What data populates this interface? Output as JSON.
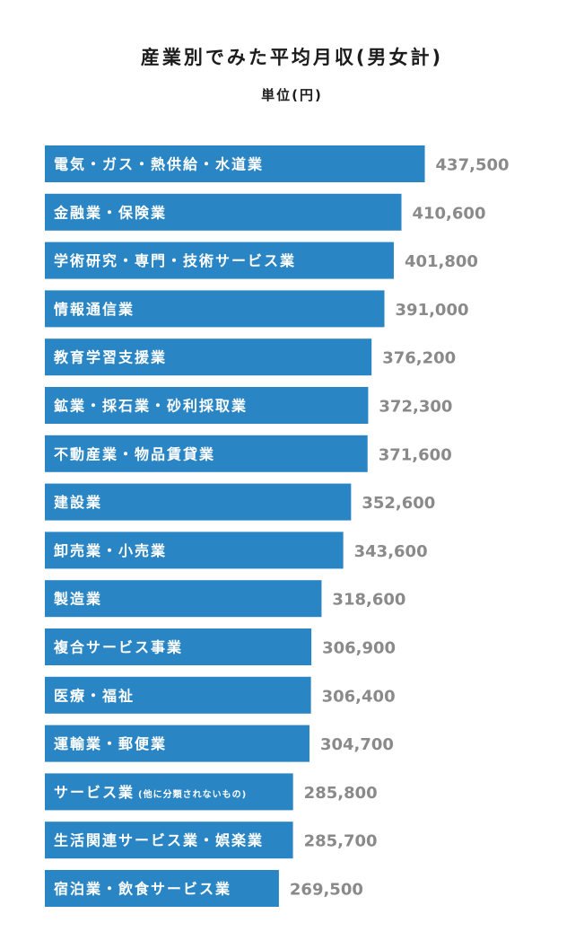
{
  "chart_data": {
    "type": "bar",
    "orientation": "horizontal",
    "title": "産業別でみた平均月収(男女計)",
    "subtitle": "単位(円)",
    "bar_color": "#2a85c4",
    "value_color": "#8a8a8a",
    "xlim": [
      0,
      470000
    ],
    "categories": [
      {
        "label": "電気・ガス・熱供給・水道業",
        "note": ""
      },
      {
        "label": "金融業・保険業",
        "note": ""
      },
      {
        "label": "学術研究・専門・技術サービス業",
        "note": ""
      },
      {
        "label": "情報通信業",
        "note": ""
      },
      {
        "label": "教育学習支援業",
        "note": ""
      },
      {
        "label": "鉱業・採石業・砂利採取業",
        "note": ""
      },
      {
        "label": "不動産業・物品賃貸業",
        "note": ""
      },
      {
        "label": "建設業",
        "note": ""
      },
      {
        "label": "卸売業・小売業",
        "note": ""
      },
      {
        "label": "製造業",
        "note": ""
      },
      {
        "label": "複合サービス事業",
        "note": ""
      },
      {
        "label": "医療・福祉",
        "note": ""
      },
      {
        "label": "運輸業・郵便業",
        "note": ""
      },
      {
        "label": "サービス業",
        "note": "(他に分類されないもの)"
      },
      {
        "label": "生活関連サービス業・娯楽業",
        "note": ""
      },
      {
        "label": "宿泊業・飲食サービス業",
        "note": ""
      }
    ],
    "values": [
      437500,
      410600,
      401800,
      391000,
      376200,
      372300,
      371600,
      352600,
      343600,
      318600,
      306900,
      306400,
      304700,
      285800,
      285700,
      269500
    ],
    "value_labels": [
      "437,500",
      "410,600",
      "401,800",
      "391,000",
      "376,200",
      "372,300",
      "371,600",
      "352,600",
      "343,600",
      "318,600",
      "306,900",
      "306,400",
      "304,700",
      "285,800",
      "285,700",
      "269,500"
    ]
  }
}
